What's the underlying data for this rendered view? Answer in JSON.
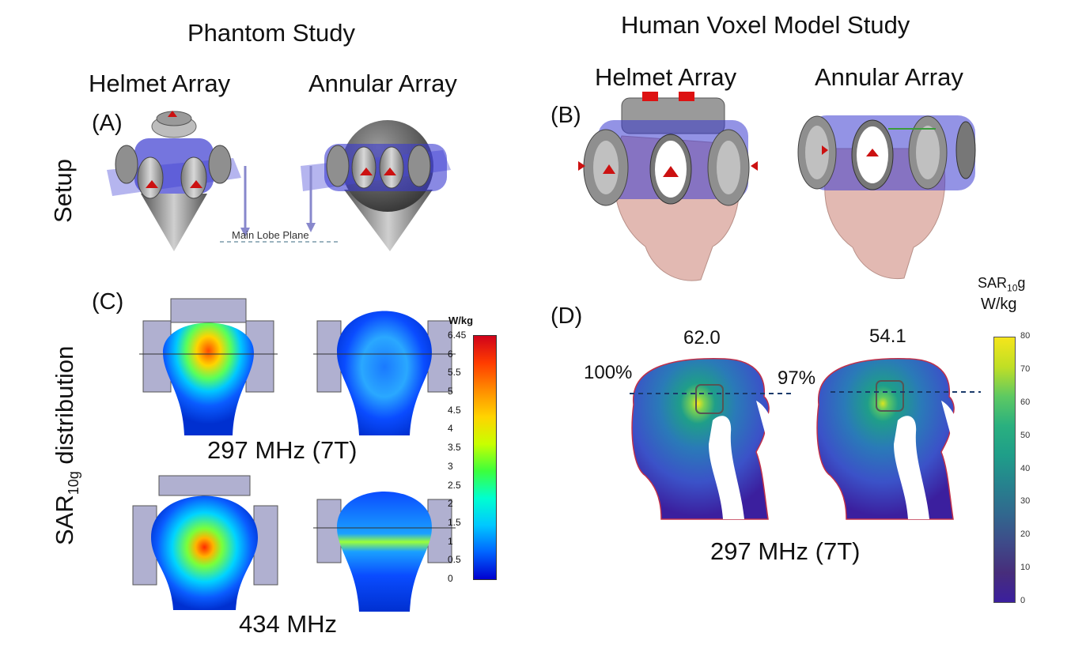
{
  "headers": {
    "phantom": "Phantom Study",
    "human": "Human Voxel Model Study",
    "helmet_left": "Helmet Array",
    "annular_left": "Annular Array",
    "helmet_right": "Helmet Array",
    "annular_right": "Annular Array"
  },
  "rows": {
    "setup": "Setup",
    "sar_main": "SAR",
    "sar_sub": "10g",
    "sar_rest": " distribution"
  },
  "panels": {
    "a": "(A)",
    "b": "(B)",
    "c": "(C)",
    "d": "(D)"
  },
  "phantom_setup": {
    "main_lobe_plane": "Main Lobe Plane"
  },
  "phantom_sar": {
    "freq_top": "297 MHz (7T)",
    "freq_bottom": "434 MHz",
    "unit": "W/kg",
    "scale_ticks": [
      "6.45",
      "6",
      "5.5",
      "5",
      "4.5",
      "4",
      "3.5",
      "3",
      "2.5",
      "2",
      "1.5",
      "1",
      "0.5",
      "0"
    ],
    "scale_colors": [
      "#d0021b",
      "#ff3c00",
      "#ff8c00",
      "#ffd400",
      "#c8ff00",
      "#3cff3c",
      "#00ffd0",
      "#00c8ff",
      "#0064ff",
      "#0000d0"
    ]
  },
  "human_sar": {
    "freq": "297 MHz (7T)",
    "helmet_peak": "62.0",
    "annular_peak": "54.1",
    "helmet_percent": "100%",
    "annular_percent": "97%",
    "unit_line1": "SAR",
    "unit_sub": "10",
    "unit_g": "g",
    "unit_line2": "W/kg",
    "scale_ticks": [
      "80",
      "70",
      "60",
      "50",
      "40",
      "30",
      "20",
      "10",
      "0"
    ],
    "scale_colors": [
      "#f5e51b",
      "#c0df25",
      "#5ec962",
      "#2ab07f",
      "#1f9e89",
      "#26828e",
      "#31688e",
      "#3e4a89",
      "#472d7b",
      "#3b1f9e"
    ]
  }
}
